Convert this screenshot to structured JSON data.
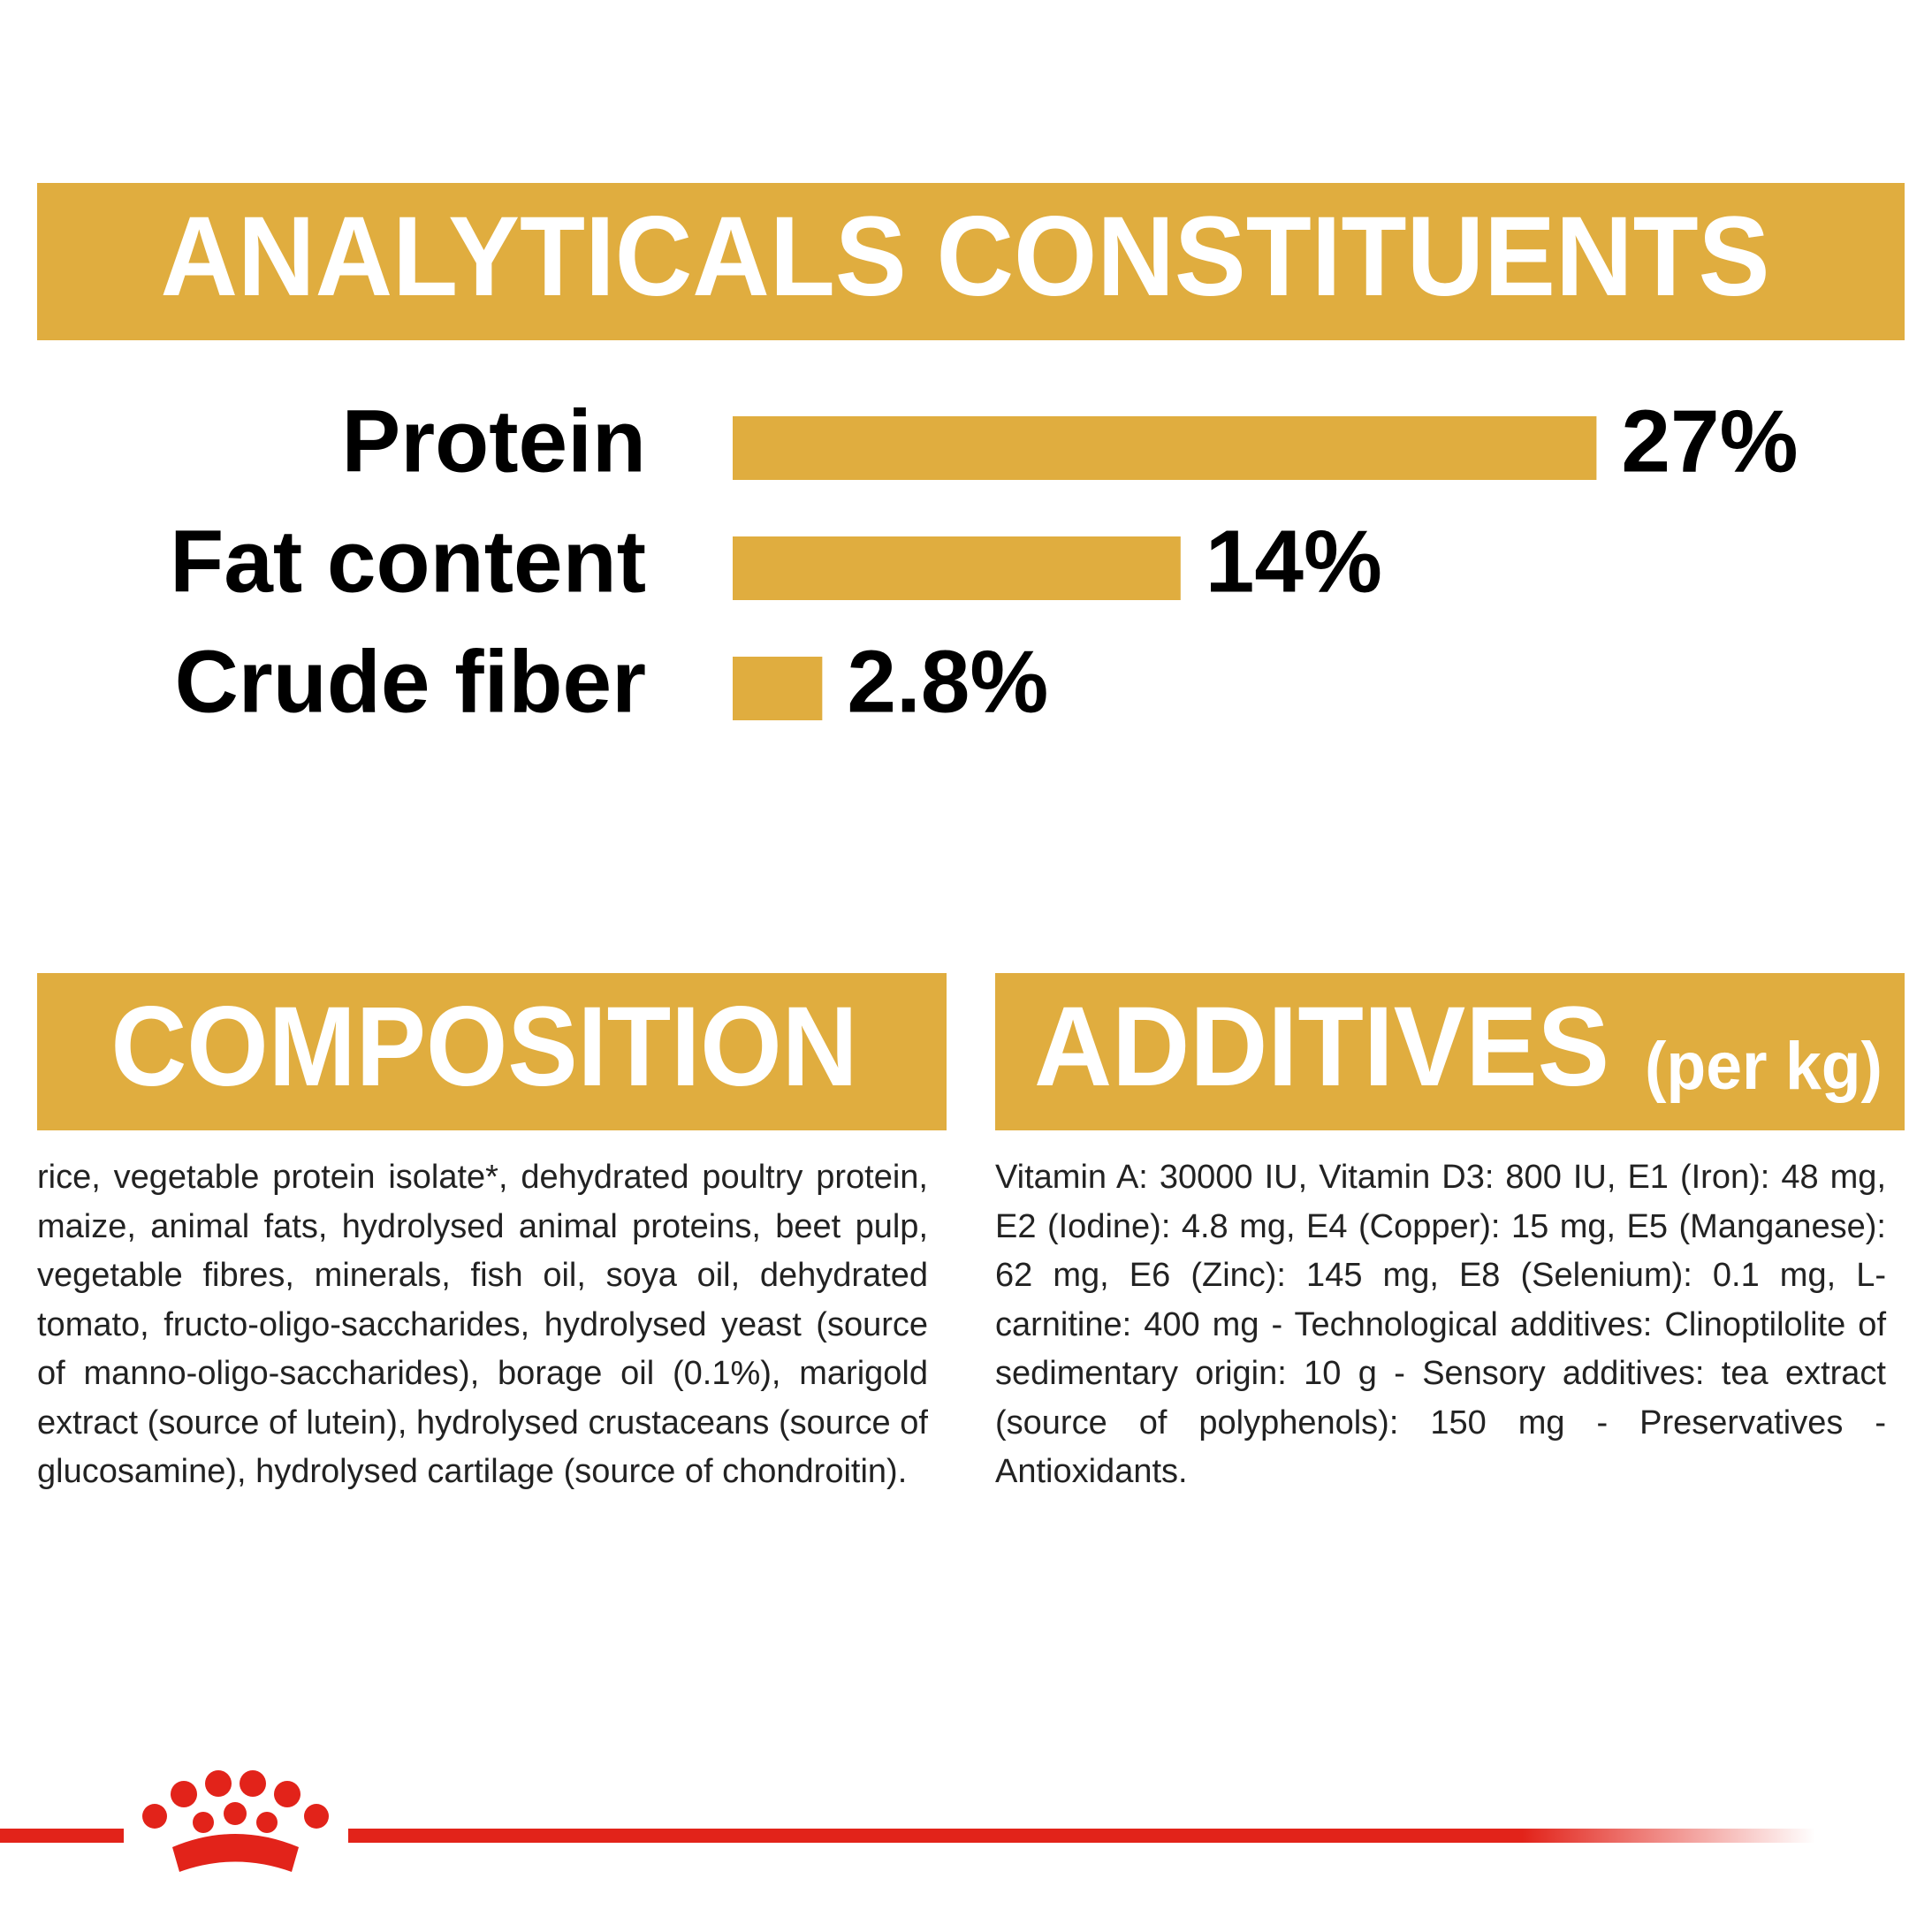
{
  "chart_data": {
    "type": "bar",
    "title": "ANALYTICALS CONSTITUENTS",
    "categories": [
      "Protein",
      "Fat content",
      "Crude fiber"
    ],
    "values": [
      27,
      14,
      2.8
    ],
    "value_labels": [
      "27%",
      "14%",
      "2.8%"
    ],
    "color": "#e0ad3f"
  },
  "composition": {
    "title": "COMPOSITION",
    "text": "rice, vegetable protein isolate*, dehydrated poultry protein, maize, animal fats, hydrolysed animal proteins, beet pulp, vegetable fibres, minerals, fish oil, soya oil, dehydrated tomato, fructo-oligo-saccharides, hydrolysed yeast (source of manno-oligo-saccharides), borage oil (0.1%), marigold extract (source of lutein), hydrolysed crustaceans (source of glucosamine), hydrolysed cartilage (source of chondroitin)."
  },
  "additives": {
    "title": "ADDITIVES",
    "unit": "(per kg)",
    "text": "Vitamin A: 30000 IU, Vitamin D3: 800 IU, E1 (Iron): 48 mg, E2 (Iodine): 4.8 mg, E4 (Copper): 15 mg, E5 (Manganese): 62 mg, E6 (Zinc): 145 mg, E8 (Selenium): 0.1 mg, L-carnitine: 400 mg - Technological additives: Clinoptilolite of sedimentary origin: 10 g - Sensory additives: tea extract (source of polyphenols): 150 mg - Preservatives - Antioxidants."
  }
}
